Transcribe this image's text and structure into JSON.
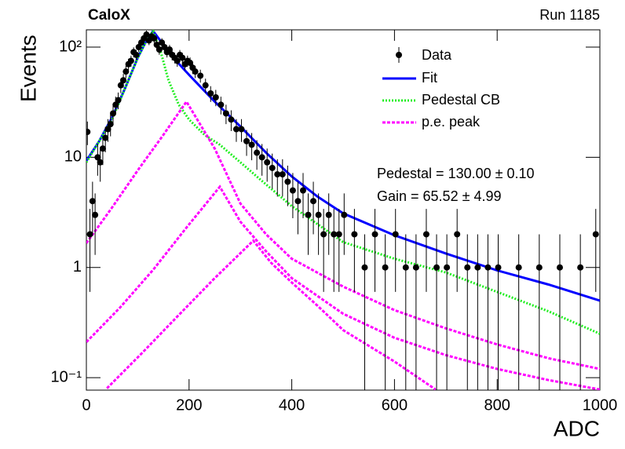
{
  "chart_data": {
    "type": "line",
    "title": "CaloX",
    "subtitle": "Run 1185",
    "x_label": "ADC",
    "y_label": "Events",
    "annotations": [
      "Pedestal = 130.00 ± 0.10",
      "Gain = 65.52 ± 4.99"
    ],
    "xlim": [
      0,
      1000
    ],
    "xticks": [
      0,
      200,
      400,
      600,
      800,
      1000
    ],
    "ylim": [
      0.077,
      143.5
    ],
    "log_y": true,
    "yticks": [
      {
        "value": 0.1,
        "label": "10⁻¹"
      },
      1,
      10,
      {
        "value": 100,
        "label": "10²"
      }
    ],
    "legend": "top-right",
    "points": {
      "name": "Data",
      "color": "#000000",
      "x": [
        2,
        7,
        12,
        17,
        22,
        27,
        32,
        37,
        42,
        47,
        52,
        57,
        62,
        67,
        72,
        77,
        82,
        87,
        92,
        97,
        102,
        107,
        112,
        117,
        122,
        127,
        132,
        137,
        142,
        147,
        152,
        157,
        162,
        167,
        172,
        177,
        182,
        187,
        192,
        197,
        202,
        207,
        212,
        222,
        232,
        242,
        252,
        262,
        272,
        282,
        292,
        302,
        312,
        322,
        332,
        342,
        352,
        362,
        372,
        382,
        392,
        402,
        412,
        422,
        432,
        442,
        452,
        462,
        472,
        482,
        492,
        502,
        522,
        542,
        562,
        582,
        602,
        622,
        642,
        662,
        682,
        702,
        722,
        742,
        762,
        782,
        802,
        842,
        882,
        922,
        962,
        992
      ],
      "values": [
        17,
        2,
        4,
        3,
        10,
        9,
        12,
        15,
        18,
        20,
        25,
        30,
        33,
        45,
        50,
        60,
        70,
        75,
        90,
        85,
        100,
        110,
        120,
        130,
        115,
        125,
        120,
        105,
        95,
        110,
        100,
        90,
        95,
        85,
        80,
        75,
        85,
        80,
        70,
        75,
        72,
        65,
        60,
        55,
        45,
        38,
        35,
        30,
        25,
        22,
        18,
        18,
        14,
        13,
        11,
        10,
        9,
        8,
        7,
        7,
        6,
        5,
        4,
        5,
        3,
        4,
        3,
        2,
        3,
        2,
        2,
        3,
        2,
        1,
        2,
        1,
        2,
        1,
        1,
        2,
        1,
        1,
        2,
        1,
        1,
        1,
        1,
        1,
        1,
        1,
        1,
        2
      ],
      "errors": [
        4.1,
        1.4,
        2,
        1.7,
        3.2,
        3,
        3.5,
        3.9,
        4.2,
        4.5,
        5,
        5.5,
        5.7,
        6.7,
        7.1,
        7.7,
        8.4,
        8.7,
        9.5,
        9.2,
        10,
        10.5,
        11,
        11.4,
        10.7,
        11.2,
        11,
        10.2,
        9.7,
        10.5,
        10,
        9.5,
        9.7,
        9.2,
        8.9,
        8.7,
        9.2,
        8.9,
        8.4,
        8.7,
        8.5,
        8.1,
        7.7,
        7.4,
        6.7,
        6.2,
        5.9,
        5.5,
        5,
        4.7,
        4.2,
        4.2,
        3.7,
        3.6,
        3.3,
        3.2,
        3,
        2.8,
        2.6,
        2.6,
        2.4,
        2.2,
        2,
        2.2,
        1.7,
        2,
        1.7,
        1.4,
        1.7,
        1.4,
        1.4,
        1.7,
        1.4,
        1,
        1.4,
        1,
        1.4,
        1,
        1,
        1.4,
        1,
        1,
        1.4,
        1,
        1,
        1,
        1,
        1,
        1,
        1,
        1,
        1.4
      ]
    },
    "series": [
      {
        "name": "Fit",
        "color": "#0000ff",
        "style": "solid",
        "x": [
          0,
          25,
          50,
          75,
          100,
          115,
          130,
          150,
          175,
          200,
          250,
          300,
          350,
          400,
          450,
          500,
          600,
          700,
          800,
          900,
          1000
        ],
        "values": [
          9.3,
          14,
          23,
          42,
          80,
          110,
          140,
          105,
          75,
          56,
          32,
          19,
          11,
          6.7,
          4.4,
          3.1,
          1.96,
          1.34,
          0.94,
          0.7,
          0.5
        ]
      },
      {
        "name": "Pedestal CB",
        "color": "#22ee22",
        "style": "dotted",
        "x": [
          0,
          25,
          50,
          75,
          100,
          115,
          130,
          145,
          160,
          180,
          200,
          230,
          260,
          300,
          340,
          400,
          500,
          600,
          700,
          800,
          900,
          1000
        ],
        "values": [
          9,
          14,
          22,
          42,
          80,
          110,
          140,
          90,
          50,
          30,
          22,
          16,
          13,
          9,
          6.2,
          3.6,
          1.7,
          1.2,
          0.9,
          0.6,
          0.4,
          0.25
        ]
      },
      {
        "name": "p.e. peak",
        "color": "#ff00ff",
        "style": "dashed",
        "x": [
          0,
          50,
          100,
          150,
          195,
          250,
          300,
          350,
          400,
          500,
          600,
          700,
          800,
          900,
          1000,
          null,
          0,
          65,
          130,
          195,
          260,
          300,
          350,
          400,
          500,
          600,
          700,
          800,
          900,
          1000,
          null,
          40,
          110,
          180,
          250,
          325,
          360,
          400,
          450,
          500,
          600,
          680
        ],
        "values": [
          1.66,
          3.5,
          7.6,
          16,
          32,
          12,
          3.8,
          2,
          1.2,
          0.67,
          0.41,
          0.28,
          0.2,
          0.15,
          0.12,
          null,
          0.21,
          0.43,
          0.95,
          2.3,
          5.4,
          2.6,
          1.4,
          0.8,
          0.38,
          0.23,
          0.16,
          0.12,
          0.095,
          0.078,
          null,
          0.08,
          0.17,
          0.37,
          0.8,
          1.75,
          1.1,
          0.73,
          0.45,
          0.27,
          0.14,
          0.078
        ]
      }
    ]
  }
}
